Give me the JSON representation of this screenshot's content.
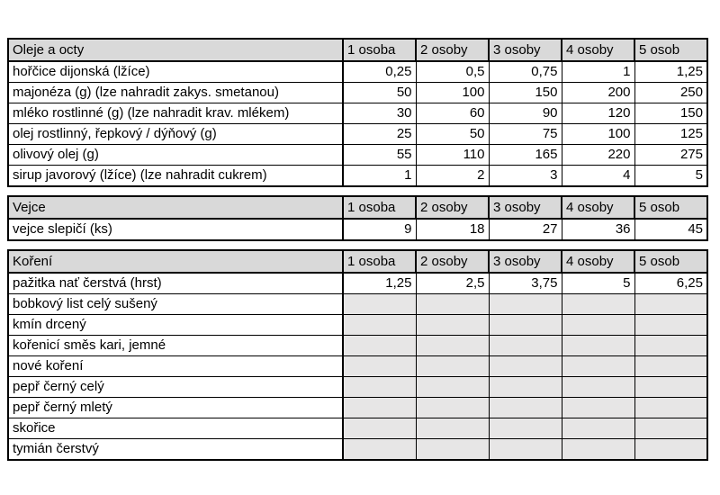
{
  "colors": {
    "header_bg": "#d9d9d9",
    "empty_bg": "#e7e6e6",
    "border": "#000000",
    "page_bg": "#ffffff"
  },
  "columns": [
    "1 osoba",
    "2 osoby",
    "3 osoby",
    "4 osoby",
    "5 osob"
  ],
  "sections": [
    {
      "title": "Oleje a octy",
      "rows": [
        {
          "label": "hořčice dijonská (lžíce)",
          "values": [
            "0,25",
            "0,5",
            "0,75",
            "1",
            "1,25"
          ]
        },
        {
          "label": "majonéza (g) (lze nahradit zakys. smetanou)",
          "values": [
            "50",
            "100",
            "150",
            "200",
            "250"
          ]
        },
        {
          "label": "mléko rostlinné (g) (lze nahradit krav. mlékem)",
          "values": [
            "30",
            "60",
            "90",
            "120",
            "150"
          ]
        },
        {
          "label": "olej rostlinný, řepkový / dýňový (g)",
          "values": [
            "25",
            "50",
            "75",
            "100",
            "125"
          ]
        },
        {
          "label": "olivový olej (g)",
          "values": [
            "55",
            "110",
            "165",
            "220",
            "275"
          ]
        },
        {
          "label": "sirup javorový (lžíce) (lze nahradit cukrem)",
          "values": [
            "1",
            "2",
            "3",
            "4",
            "5"
          ]
        }
      ]
    },
    {
      "title": "Vejce",
      "rows": [
        {
          "label": "vejce slepičí (ks)",
          "values": [
            "9",
            "18",
            "27",
            "36",
            "45"
          ]
        }
      ]
    },
    {
      "title": "Koření",
      "rows": [
        {
          "label": "pažitka nať čerstvá (hrst)",
          "values": [
            "1,25",
            "2,5",
            "3,75",
            "5",
            "6,25"
          ]
        },
        {
          "label": "bobkový list celý sušený",
          "values": [
            "",
            "",
            "",
            "",
            ""
          ]
        },
        {
          "label": "kmín drcený",
          "values": [
            "",
            "",
            "",
            "",
            ""
          ]
        },
        {
          "label": "kořenicí směs kari, jemné",
          "values": [
            "",
            "",
            "",
            "",
            ""
          ]
        },
        {
          "label": "nové koření",
          "values": [
            "",
            "",
            "",
            "",
            ""
          ]
        },
        {
          "label": "pepř černý celý",
          "values": [
            "",
            "",
            "",
            "",
            ""
          ]
        },
        {
          "label": "pepř černý mletý",
          "values": [
            "",
            "",
            "",
            "",
            ""
          ]
        },
        {
          "label": "skořice",
          "values": [
            "",
            "",
            "",
            "",
            ""
          ]
        },
        {
          "label": "tymián čerstvý",
          "values": [
            "",
            "",
            "",
            "",
            ""
          ]
        }
      ]
    }
  ]
}
